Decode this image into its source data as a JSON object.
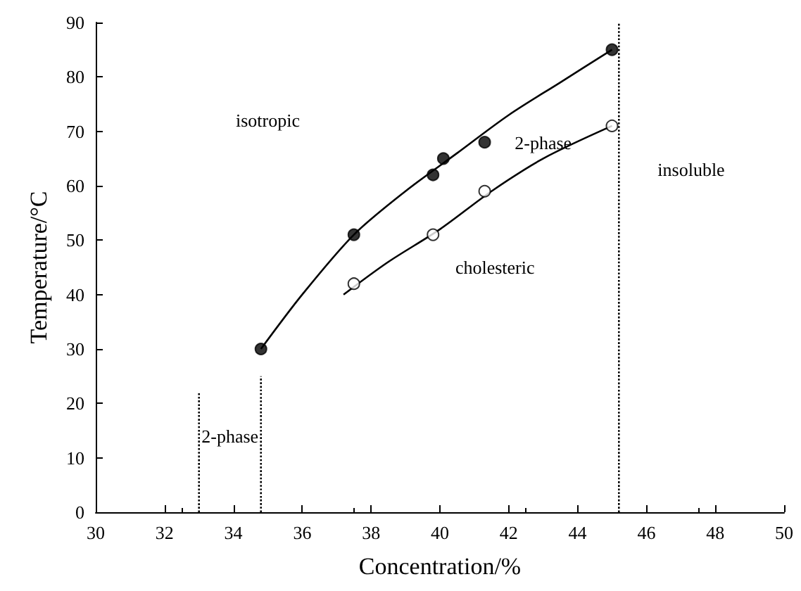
{
  "chart_data": {
    "type": "scatter",
    "xlabel": "Concentration/%",
    "ylabel": "Temperature/°C",
    "xlim": [
      30,
      50
    ],
    "xticks": [
      30,
      32,
      34,
      36,
      38,
      40,
      42,
      44,
      46,
      48,
      50
    ],
    "ylim": [
      0,
      90
    ],
    "yticks": [
      0,
      10,
      20,
      30,
      40,
      50,
      60,
      70,
      80,
      90
    ],
    "grid": false,
    "series": [
      {
        "marker": "circle",
        "color": "#000000",
        "x": [
          34.8,
          37.5,
          39.8,
          40.1,
          41.3,
          45
        ],
        "values": [
          30,
          51,
          62,
          65,
          68,
          85
        ]
      },
      {
        "marker": "circle",
        "color": "#ffffff",
        "x": [
          37.5,
          39.8,
          41.3,
          45
        ],
        "values": [
          42,
          51,
          59,
          71
        ]
      },
      {
        "type": "line",
        "color": "#000000",
        "line_style": "solid",
        "x": [
          34.8,
          36,
          37.5,
          39,
          40.5,
          42,
          43.5,
          45
        ],
        "values": [
          30,
          40,
          51,
          59,
          66,
          73,
          79,
          85
        ]
      },
      {
        "type": "line",
        "color": "#000000",
        "line_style": "solid",
        "x": [
          37.2,
          38.5,
          40,
          41.5,
          43,
          45
        ],
        "values": [
          40,
          46,
          52,
          59,
          65,
          71
        ]
      },
      {
        "type": "line",
        "color": "#000000",
        "line_style": "dotted",
        "x": [
          33,
          33
        ],
        "values": [
          0,
          22
        ]
      },
      {
        "type": "line",
        "color": "#000000",
        "line_style": "dotted",
        "x": [
          34.8,
          34.8
        ],
        "values": [
          0,
          25
        ]
      },
      {
        "type": "line",
        "color": "#000000",
        "line_style": "dotted",
        "x": [
          45.2,
          45.2
        ],
        "values": [
          0,
          90
        ]
      }
    ],
    "annotations": [
      "isotropic",
      "2-phase",
      "insoluble",
      "cholesteric",
      "2-phase"
    ]
  }
}
